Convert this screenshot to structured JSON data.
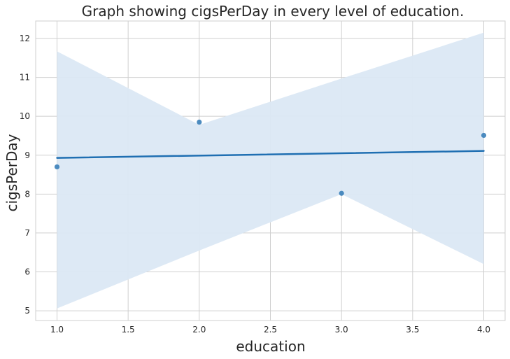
{
  "chart_data": {
    "type": "scatter",
    "title": "Graph showing cigsPerDay in every level of education.",
    "xlabel": "education",
    "ylabel": "cigsPerDay",
    "xlim": [
      0.85,
      4.15
    ],
    "ylim": [
      4.75,
      12.45
    ],
    "xticks": [
      "1.0",
      "1.5",
      "2.0",
      "2.5",
      "3.0",
      "3.5",
      "4.0"
    ],
    "yticks": [
      "5",
      "6",
      "7",
      "8",
      "9",
      "10",
      "11",
      "12"
    ],
    "grid": true,
    "series": [
      {
        "points": [
          {
            "x": 1,
            "y": 8.7
          },
          {
            "x": 2,
            "y": 9.85
          },
          {
            "x": 3,
            "y": 8.02
          },
          {
            "x": 4,
            "y": 9.51
          }
        ]
      }
    ],
    "regression": {
      "x": [
        1,
        4
      ],
      "y": [
        8.93,
        9.11
      ]
    },
    "confidence_band": {
      "x": [
        1,
        2,
        3,
        4
      ],
      "upper": [
        11.67,
        9.78,
        10.97,
        12.15
      ],
      "lower": [
        5.06,
        6.55,
        8.0,
        6.2
      ]
    },
    "colors": {
      "points": "#3a7fb9",
      "line": "#1f6fb2",
      "band": "#dbe8f4",
      "grid": "#cfcfcf",
      "text": "#262626"
    }
  }
}
